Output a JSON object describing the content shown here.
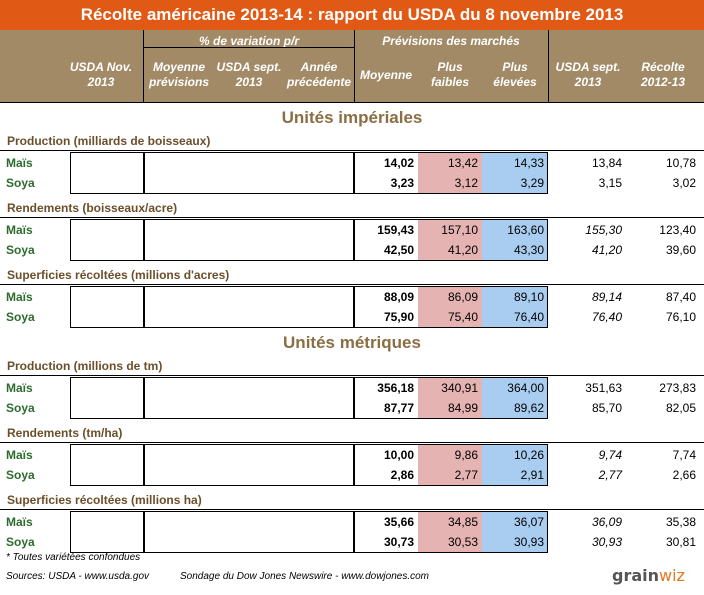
{
  "title": "Récolte américaine 2013-14 : rapport du USDA du 8 novembre 2013",
  "header": {
    "usda_nov": "USDA Nov. 2013",
    "pct_variation": "% de variation p/r",
    "moyenne_previsions": "Moyenne prévisions",
    "usda_sept_2013": "USDA sept. 2013",
    "annee_precedente": "Année précédente",
    "previsions_marches": "Prévisions des marchés",
    "moyenne": "Moyenne",
    "plus_faibles": "Plus faibles",
    "plus_elevees": "Plus élevées",
    "usda_sept": "USDA sept. 2013",
    "recolte": "Récolte 2012-13"
  },
  "sections": [
    {
      "title": "Unités impériales",
      "categories": [
        {
          "label": "Production (milliards de boisseaux)",
          "rows": [
            {
              "name": "Maïs",
              "moyenne": "14,02",
              "faibles": "13,42",
              "elevees": "14,33",
              "sept": "13,84",
              "recolte": "10,78"
            },
            {
              "name": "Soya",
              "moyenne": "3,23",
              "faibles": "3,12",
              "elevees": "3,29",
              "sept": "3,15",
              "recolte": "3,02"
            }
          ]
        },
        {
          "label": "Rendements (boisseaux/acre)",
          "rows": [
            {
              "name": "Maïs",
              "moyenne": "159,43",
              "faibles": "157,10",
              "elevees": "163,60",
              "sept": "155,30",
              "recolte": "123,40"
            },
            {
              "name": "Soya",
              "moyenne": "42,50",
              "faibles": "41,20",
              "elevees": "43,30",
              "sept": "41,20",
              "recolte": "39,60"
            }
          ]
        },
        {
          "label": "Superficies récoltées (millions d'acres)",
          "rows": [
            {
              "name": "Maïs",
              "moyenne": "88,09",
              "faibles": "86,09",
              "elevees": "89,10",
              "sept": "89,14",
              "recolte": "87,40"
            },
            {
              "name": "Soya",
              "moyenne": "75,90",
              "faibles": "75,40",
              "elevees": "76,40",
              "sept": "76,40",
              "recolte": "76,10"
            }
          ]
        }
      ]
    },
    {
      "title": "Unités métriques",
      "categories": [
        {
          "label": "Production (millions de tm)",
          "rows": [
            {
              "name": "Maïs",
              "moyenne": "356,18",
              "faibles": "340,91",
              "elevees": "364,00",
              "sept": "351,63",
              "recolte": "273,83"
            },
            {
              "name": "Soya",
              "moyenne": "87,77",
              "faibles": "84,99",
              "elevees": "89,62",
              "sept": "85,70",
              "recolte": "82,05"
            }
          ]
        },
        {
          "label": "Rendements (tm/ha)",
          "rows": [
            {
              "name": "Maïs",
              "moyenne": "10,00",
              "faibles": "9,86",
              "elevees": "10,26",
              "sept": "9,74",
              "recolte": "7,74"
            },
            {
              "name": "Soya",
              "moyenne": "2,86",
              "faibles": "2,77",
              "elevees": "2,91",
              "sept": "2,77",
              "recolte": "2,66"
            }
          ]
        },
        {
          "label": "Superficies récoltées (millions ha)",
          "rows": [
            {
              "name": "Maïs",
              "moyenne": "35,66",
              "faibles": "34,85",
              "elevees": "36,07",
              "sept": "36,09",
              "recolte": "35,38"
            },
            {
              "name": "Soya",
              "moyenne": "30,73",
              "faibles": "30,53",
              "elevees": "30,93",
              "sept": "30,93",
              "recolte": "30,81"
            }
          ]
        }
      ]
    }
  ],
  "footer": {
    "note": "* Toutes variétées confondues",
    "sources": "Sources: USDA - www.usda.gov",
    "sondage": "Sondage du Dow Jones Newswire - www.dowjones.com",
    "logo_a": "grain",
    "logo_b": "wiz"
  },
  "colors": {
    "title_bg": "#e05a16",
    "header_bg": "#a28a67",
    "low_bg": "#e6b3b3",
    "high_bg": "#a9cdf0",
    "label_green": "#2e6b2e"
  }
}
